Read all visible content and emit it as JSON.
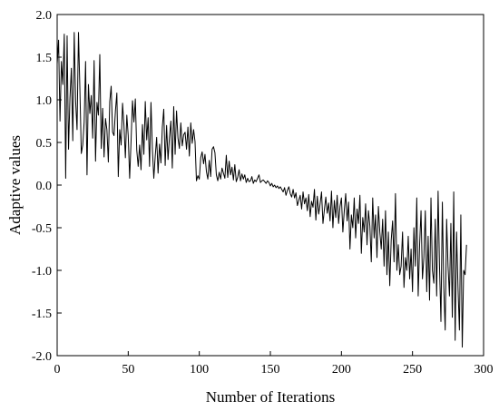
{
  "chart_data": {
    "type": "line",
    "title": "",
    "xlabel": "Number of Iterations",
    "ylabel": "Adaptive values",
    "xlim": [
      0,
      300
    ],
    "ylim": [
      -2.0,
      2.0
    ],
    "xticks": [
      0,
      50,
      100,
      150,
      200,
      250,
      300
    ],
    "xtick_labels": [
      "0",
      "50",
      "100",
      "150",
      "200",
      "250",
      "300"
    ],
    "yticks": [
      2.0,
      1.5,
      1.0,
      0.5,
      0.0,
      -0.5,
      -1.0,
      -1.5,
      -2.0
    ],
    "ytick_labels": [
      "2.0",
      "1.5",
      "1.0",
      "0.5",
      "0.0",
      "-0.5",
      "-1.0",
      "-1.5",
      "-2.0"
    ],
    "grid": false,
    "series": [
      {
        "color": "#000000",
        "x_start": 0,
        "x_step": 1,
        "values": [
          1.42,
          1.7,
          0.75,
          1.45,
          1.18,
          1.77,
          0.08,
          1.75,
          0.42,
          1.02,
          1.37,
          0.52,
          1.79,
          0.98,
          0.65,
          1.79,
          1.12,
          0.37,
          0.47,
          0.74,
          1.45,
          0.12,
          1.18,
          0.84,
          1.05,
          0.55,
          1.46,
          0.28,
          0.97,
          0.82,
          1.53,
          0.43,
          0.9,
          0.33,
          0.78,
          0.65,
          0.27,
          0.98,
          1.16,
          0.62,
          0.58,
          0.87,
          1.08,
          0.1,
          0.65,
          0.47,
          0.96,
          0.7,
          0.32,
          0.82,
          0.58,
          0.08,
          0.52,
          0.99,
          0.74,
          1.01,
          0.41,
          0.22,
          0.47,
          0.18,
          0.71,
          0.36,
          0.98,
          0.53,
          0.79,
          0.22,
          0.97,
          0.42,
          0.08,
          0.34,
          0.56,
          0.14,
          0.48,
          0.26,
          0.68,
          0.89,
          0.23,
          0.7,
          0.3,
          0.56,
          0.75,
          0.2,
          0.92,
          0.36,
          0.87,
          0.55,
          0.43,
          0.73,
          0.46,
          0.59,
          0.62,
          0.42,
          0.68,
          0.34,
          0.73,
          0.49,
          0.65,
          0.51,
          0.05,
          0.11,
          0.07,
          0.32,
          0.39,
          0.25,
          0.36,
          0.16,
          0.07,
          0.29,
          0.1,
          0.42,
          0.45,
          0.38,
          0.12,
          0.05,
          0.15,
          0.07,
          0.2,
          0.14,
          0.08,
          0.35,
          0.09,
          0.28,
          0.12,
          0.21,
          0.06,
          0.24,
          0.04,
          0.09,
          0.18,
          0.05,
          0.13,
          0.07,
          0.12,
          0.03,
          0.08,
          0.04,
          0.05,
          0.1,
          0.02,
          0.06,
          0.04,
          0.08,
          0.12,
          0.03,
          0.05,
          0.06,
          0.04,
          0.02,
          0.05,
          0.03,
          -0.01,
          0.02,
          -0.02,
          0.0,
          -0.03,
          -0.01,
          -0.04,
          -0.02,
          -0.05,
          -0.08,
          -0.03,
          -0.12,
          -0.06,
          -0.02,
          -0.1,
          -0.14,
          -0.05,
          -0.15,
          -0.09,
          -0.24,
          -0.18,
          -0.12,
          -0.28,
          -0.08,
          -0.22,
          -0.15,
          -0.3,
          -0.11,
          -0.37,
          -0.19,
          -0.26,
          -0.05,
          -0.41,
          -0.13,
          -0.34,
          -0.22,
          -0.08,
          -0.45,
          -0.29,
          -0.14,
          -0.33,
          -0.21,
          -0.42,
          -0.07,
          -0.5,
          -0.18,
          -0.38,
          -0.12,
          -0.45,
          -0.25,
          -0.15,
          -0.55,
          -0.3,
          -0.1,
          -0.42,
          -0.2,
          -0.75,
          -0.35,
          -0.5,
          -0.15,
          -0.62,
          -0.28,
          -0.45,
          -0.12,
          -0.8,
          -0.38,
          -0.55,
          -0.22,
          -0.7,
          -0.3,
          -0.48,
          -0.9,
          -0.15,
          -0.62,
          -0.35,
          -0.85,
          -0.25,
          -0.55,
          -0.75,
          -0.4,
          -0.95,
          -0.3,
          -1.05,
          -0.55,
          -1.18,
          -0.65,
          -0.42,
          -0.9,
          -0.1,
          -1.0,
          -0.7,
          -1.05,
          -0.95,
          -0.55,
          -1.2,
          -0.85,
          -1.0,
          -0.6,
          -1.1,
          -0.75,
          -1.25,
          -0.5,
          -0.95,
          -0.15,
          -1.3,
          -0.7,
          -0.3,
          -1.1,
          -0.85,
          -0.3,
          -1.25,
          -0.6,
          -1.35,
          -0.15,
          -1.0,
          -1.15,
          -0.4,
          -1.3,
          -0.07,
          -0.95,
          -1.6,
          -0.2,
          -1.2,
          -1.7,
          -0.4,
          -0.95,
          -1.3,
          -0.45,
          -1.55,
          -0.08,
          -1.82,
          -0.55,
          -1.2,
          -1.7,
          -0.35,
          -1.9,
          -1.0,
          -1.05,
          -0.7
        ]
      }
    ]
  }
}
